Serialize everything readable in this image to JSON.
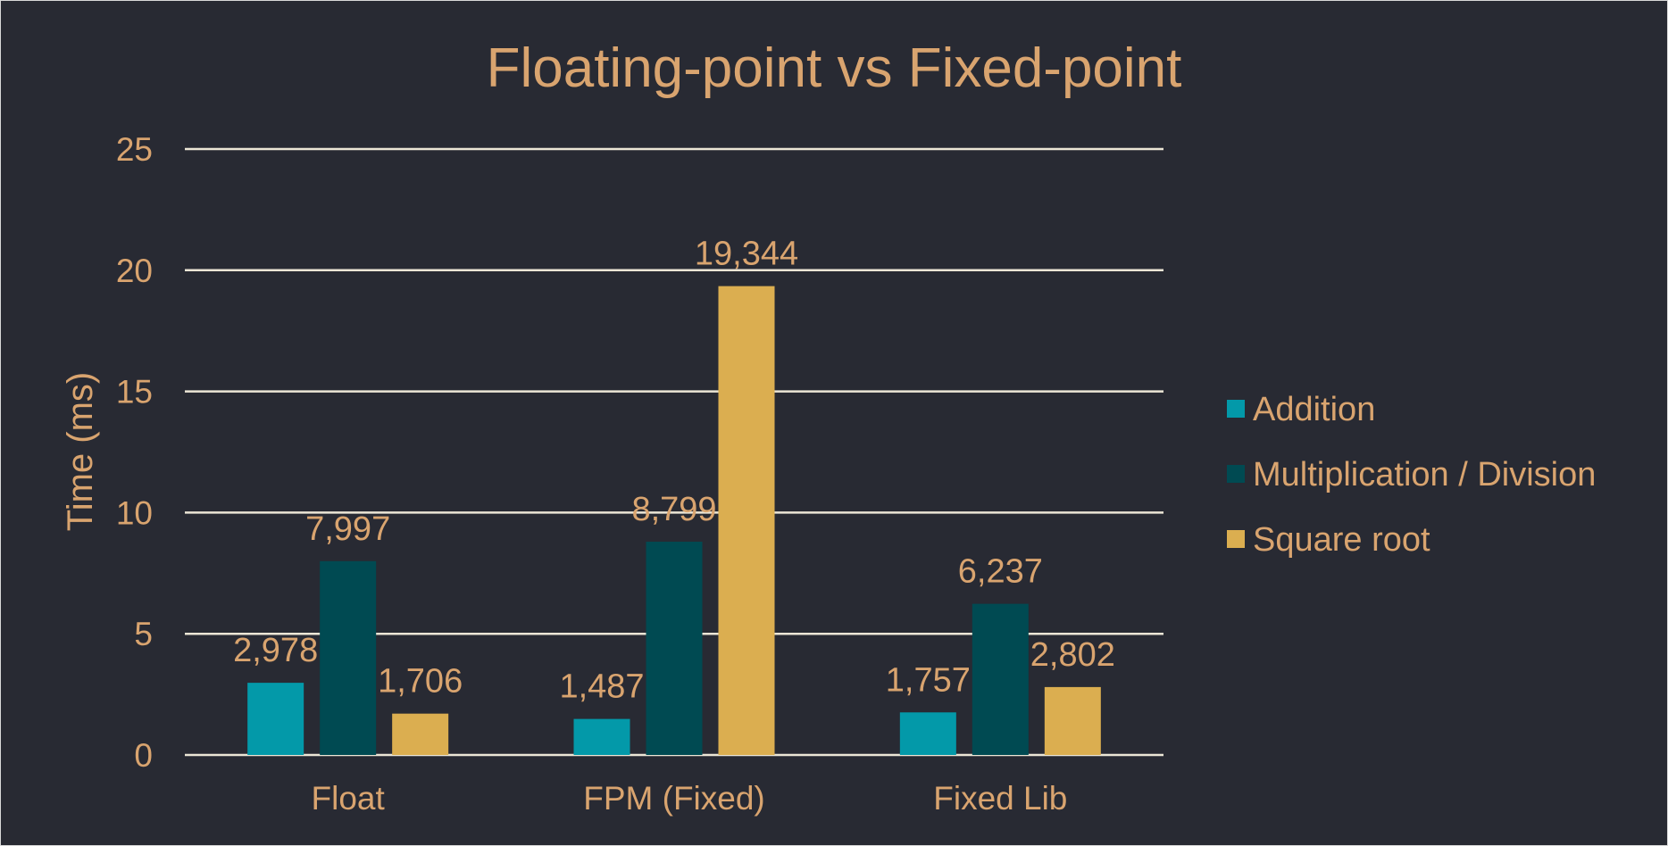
{
  "chart_data": {
    "type": "bar",
    "title": "Floating-point vs Fixed-point",
    "xlabel": "",
    "ylabel": "Time (ms)",
    "ylim": [
      0,
      25
    ],
    "yticks": [
      0,
      5,
      10,
      15,
      20,
      25
    ],
    "ytick_labels": [
      "0",
      "5",
      "10",
      "15",
      "20",
      "25"
    ],
    "grid": true,
    "legend_position": "right",
    "categories": [
      "Float",
      "FPM (Fixed)",
      "Fixed Lib"
    ],
    "series": [
      {
        "name": "Addition",
        "color": "#0399a9",
        "values": [
          2.978,
          1.487,
          1.757
        ],
        "labels": [
          "2,978",
          "1,487",
          "1,757"
        ]
      },
      {
        "name": "Multiplication / Division",
        "color": "#004a52",
        "values": [
          7.997,
          8.799,
          6.237
        ],
        "labels": [
          "7,997",
          "8,799",
          "6,237"
        ]
      },
      {
        "name": "Square root",
        "color": "#dbae50",
        "values": [
          1.706,
          19.344,
          2.802
        ],
        "labels": [
          "1,706",
          "19,344",
          "2,802"
        ]
      }
    ]
  },
  "colors": {
    "background": "#282a33",
    "text": "#d9a46f",
    "gridline": "#ece6d6"
  }
}
